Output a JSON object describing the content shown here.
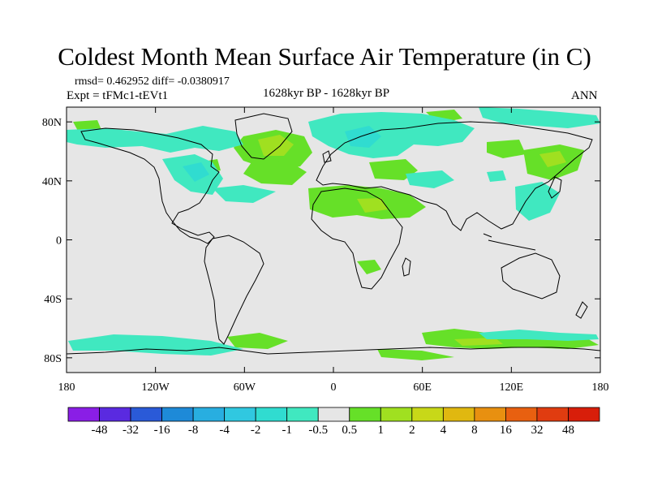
{
  "title": "Coldest Month Mean Surface Air Temperature (in C)",
  "stats": "rmsd= 0.462952 diff= -0.0380917",
  "experiment": "Expt = tFMc1-tEVt1",
  "period": "1628kyr BP - 1628kyr BP",
  "season": "ANN",
  "map": {
    "lon_range": [
      -180,
      180
    ],
    "lat_range": [
      -90,
      90
    ],
    "x_ticks": [
      {
        "lon": -180,
        "label": "180"
      },
      {
        "lon": -120,
        "label": "120W"
      },
      {
        "lon": -60,
        "label": "60W"
      },
      {
        "lon": 0,
        "label": "0"
      },
      {
        "lon": 60,
        "label": "60E"
      },
      {
        "lon": 120,
        "label": "120E"
      },
      {
        "lon": 180,
        "label": "180"
      }
    ],
    "y_ticks": [
      {
        "lat": 80,
        "label": "80N"
      },
      {
        "lat": 40,
        "label": "40N"
      },
      {
        "lat": 0,
        "label": "0"
      },
      {
        "lat": -40,
        "label": "40S"
      },
      {
        "lat": -80,
        "label": "80S"
      }
    ],
    "background_color": "#e6e6e6"
  },
  "colorbar": {
    "labels": [
      "-48",
      "-32",
      "-16",
      "-8",
      "-4",
      "-2",
      "-1",
      "-0.5",
      "0.5",
      "1",
      "2",
      "4",
      "8",
      "16",
      "32",
      "48"
    ],
    "colors": [
      "#8a1ee6",
      "#5a2ae0",
      "#2a5ad8",
      "#1e8ad8",
      "#28aee0",
      "#30c8e0",
      "#30dcd0",
      "#40e8c0",
      "#e6e6e6",
      "#66e028",
      "#a0e020",
      "#c8d818",
      "#e0b810",
      "#e89010",
      "#e86010",
      "#e03c10",
      "#d81e0a"
    ]
  }
}
